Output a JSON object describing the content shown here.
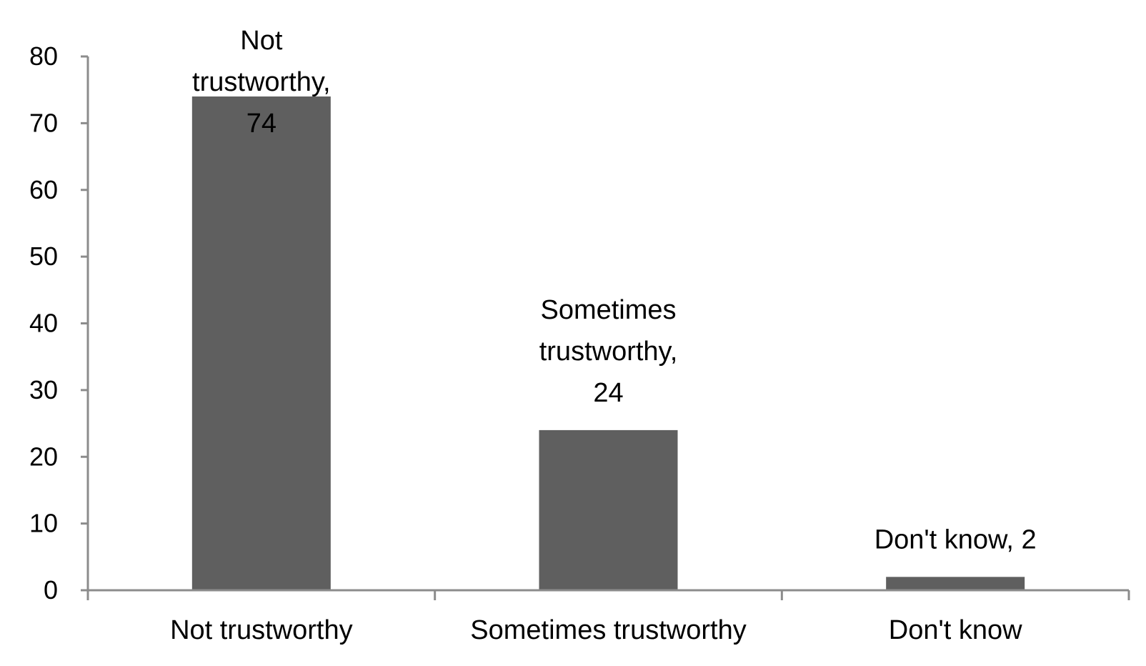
{
  "chart_data": {
    "type": "bar",
    "categories": [
      "Not trustworthy",
      "Sometimes trustworthy",
      "Don't know"
    ],
    "values": [
      74,
      24,
      2
    ],
    "data_labels": [
      [
        "Not",
        "trustworthy,",
        "74"
      ],
      [
        "Sometimes",
        "trustworthy,",
        "24"
      ],
      [
        "Don't know, 2"
      ]
    ],
    "ylim": [
      0,
      80
    ],
    "yticks": [
      "0",
      "10",
      "20",
      "30",
      "40",
      "50",
      "60",
      "70",
      "80"
    ],
    "grid": false,
    "legend": "none",
    "bar_color": "#5f5f5f",
    "axis_color": "#8c8c8c"
  }
}
